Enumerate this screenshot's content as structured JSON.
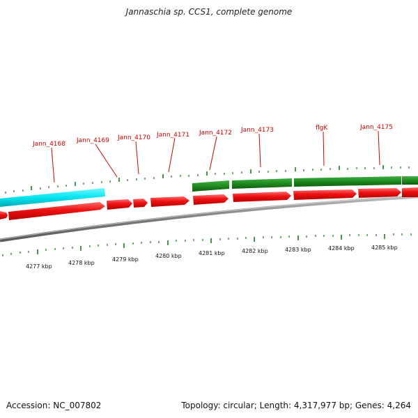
{
  "title": "Jannaschia sp. CCS1, complete genome",
  "footer": {
    "accession": "Accession: NC_007802",
    "summary": "Topology: circular; Length: 4,317,977 bp; Genes: 4,264"
  },
  "colors": {
    "backbone": "#7d7d7d",
    "forward_gene": "#1f8a1f",
    "reverse_gene": "#ee1111",
    "rna_gene": "#00e5f0",
    "label": "#cc0000",
    "tick_top": "#1a7a1a",
    "tick_bottom": "#1a7a1a"
  },
  "gene_labels": [
    "Jann_4168",
    "Jann_4169",
    "Jann_4170",
    "Jann_4171",
    "Jann_4172",
    "Jann_4173",
    "flgK",
    "Jann_4175"
  ],
  "kbp_labels": [
    "4277 kbp",
    "4278 kbp",
    "4279 kbp",
    "4280 kbp",
    "4281 kbp",
    "4282 kbp",
    "4283 kbp",
    "4284 kbp",
    "4285 kbp"
  ]
}
